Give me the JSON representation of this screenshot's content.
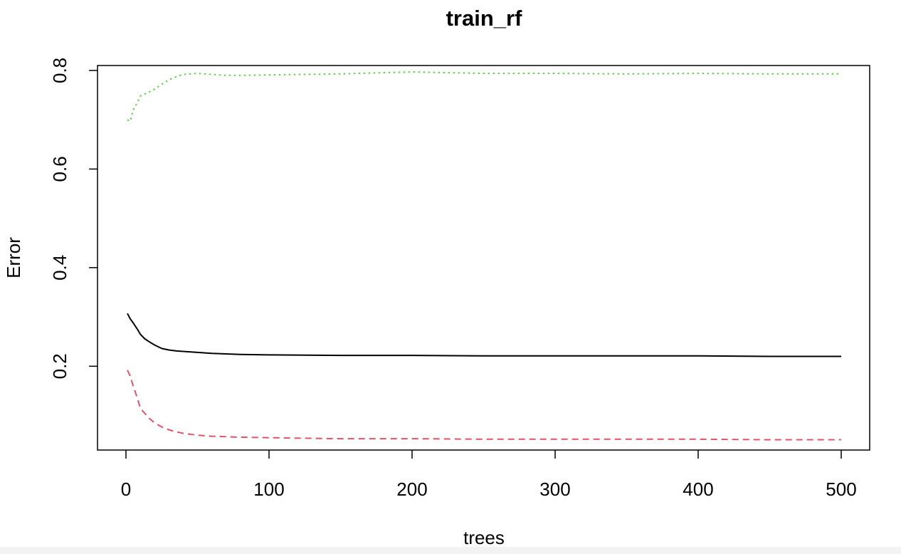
{
  "chart_data": {
    "type": "line",
    "title": "train_rf",
    "xlabel": "trees",
    "ylabel": "Error",
    "xlim": [
      0,
      500
    ],
    "ylim": [
      0.03,
      0.81
    ],
    "x_ticks": [
      0,
      100,
      200,
      300,
      400,
      500
    ],
    "y_ticks": [
      0.2,
      0.4,
      0.6,
      0.8
    ],
    "x_tick_labels": [
      "0",
      "100",
      "200",
      "300",
      "400",
      "500"
    ],
    "y_tick_labels": [
      "0.2",
      "0.4",
      "0.6",
      "0.8"
    ],
    "grid": false,
    "legend": "none",
    "series": [
      {
        "style": "solid",
        "color": "#000000",
        "points": [
          [
            1,
            0.307
          ],
          [
            3,
            0.296
          ],
          [
            5,
            0.288
          ],
          [
            8,
            0.275
          ],
          [
            10,
            0.265
          ],
          [
            13,
            0.256
          ],
          [
            16,
            0.25
          ],
          [
            20,
            0.243
          ],
          [
            25,
            0.236
          ],
          [
            30,
            0.233
          ],
          [
            35,
            0.231
          ],
          [
            40,
            0.23
          ],
          [
            50,
            0.228
          ],
          [
            60,
            0.226
          ],
          [
            70,
            0.225
          ],
          [
            80,
            0.224
          ],
          [
            100,
            0.223
          ],
          [
            150,
            0.222
          ],
          [
            200,
            0.222
          ],
          [
            250,
            0.221
          ],
          [
            300,
            0.221
          ],
          [
            350,
            0.221
          ],
          [
            400,
            0.221
          ],
          [
            450,
            0.22
          ],
          [
            500,
            0.22
          ]
        ]
      },
      {
        "style": "dashed",
        "color": "#df536b",
        "points": [
          [
            1,
            0.192
          ],
          [
            3,
            0.18
          ],
          [
            5,
            0.16
          ],
          [
            8,
            0.135
          ],
          [
            10,
            0.115
          ],
          [
            13,
            0.105
          ],
          [
            16,
            0.095
          ],
          [
            20,
            0.085
          ],
          [
            25,
            0.077
          ],
          [
            30,
            0.071
          ],
          [
            35,
            0.067
          ],
          [
            40,
            0.064
          ],
          [
            50,
            0.06
          ],
          [
            60,
            0.058
          ],
          [
            70,
            0.057
          ],
          [
            80,
            0.056
          ],
          [
            100,
            0.055
          ],
          [
            150,
            0.053
          ],
          [
            200,
            0.053
          ],
          [
            250,
            0.052
          ],
          [
            300,
            0.052
          ],
          [
            350,
            0.052
          ],
          [
            400,
            0.052
          ],
          [
            450,
            0.051
          ],
          [
            500,
            0.051
          ]
        ]
      },
      {
        "style": "dotted",
        "color": "#61d04f",
        "points": [
          [
            1,
            0.7
          ],
          [
            3,
            0.697
          ],
          [
            5,
            0.72
          ],
          [
            8,
            0.735
          ],
          [
            10,
            0.748
          ],
          [
            13,
            0.752
          ],
          [
            16,
            0.756
          ],
          [
            20,
            0.762
          ],
          [
            25,
            0.772
          ],
          [
            30,
            0.781
          ],
          [
            35,
            0.787
          ],
          [
            40,
            0.792
          ],
          [
            50,
            0.794
          ],
          [
            60,
            0.792
          ],
          [
            70,
            0.79
          ],
          [
            80,
            0.79
          ],
          [
            100,
            0.791
          ],
          [
            150,
            0.793
          ],
          [
            200,
            0.797
          ],
          [
            250,
            0.794
          ],
          [
            300,
            0.794
          ],
          [
            350,
            0.793
          ],
          [
            400,
            0.794
          ],
          [
            450,
            0.793
          ],
          [
            500,
            0.793
          ]
        ]
      }
    ]
  }
}
